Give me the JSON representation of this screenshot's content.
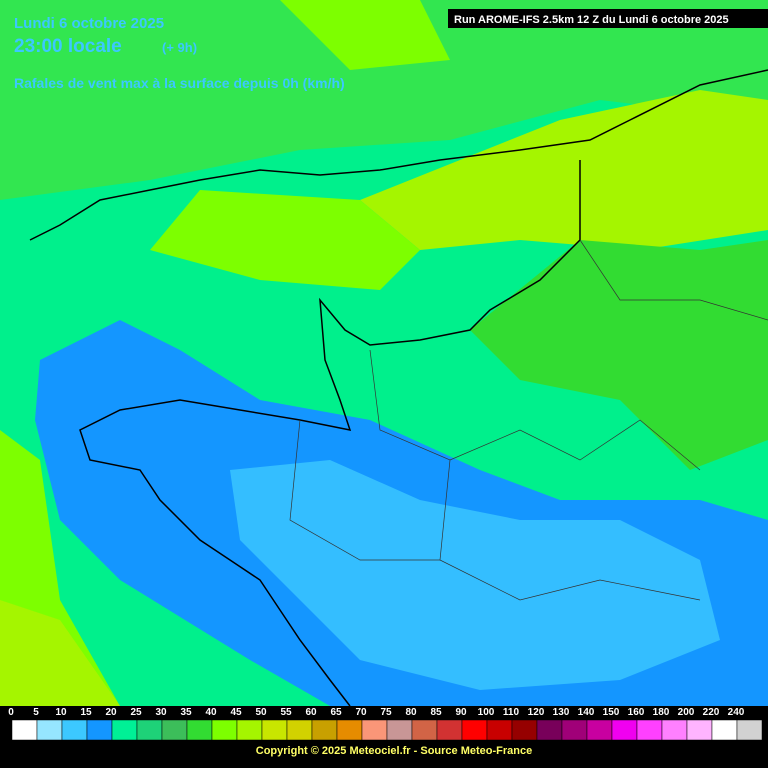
{
  "header": {
    "date": "Lundi 6 octobre 2025",
    "time": "23:00 locale",
    "offset": "(+ 9h)",
    "subtitle": "Rafales de vent max à la surface depuis 0h (km/h)",
    "run": "Run AROME-IFS 2.5km 12 Z du Lundi 6 octobre 2025"
  },
  "legend": {
    "labels": [
      "0",
      "5",
      "10",
      "15",
      "20",
      "25",
      "30",
      "35",
      "40",
      "45",
      "50",
      "55",
      "60",
      "65",
      "70",
      "75",
      "80",
      "85",
      "90",
      "100",
      "110",
      "120",
      "130",
      "140",
      "150",
      "160",
      "180",
      "200",
      "220",
      "240"
    ],
    "colors": [
      "#ffffff",
      "#96e6ff",
      "#3cc8ff",
      "#1496ff",
      "#00f096",
      "#1ed278",
      "#3cbe5a",
      "#32dc32",
      "#7dff00",
      "#a5f500",
      "#c8e600",
      "#d2d200",
      "#c8a000",
      "#e68c00",
      "#fa9678",
      "#c89696",
      "#d26446",
      "#d23232",
      "#ff0000",
      "#c80000",
      "#960000",
      "#78005a",
      "#a00078",
      "#c800a0",
      "#f000f0",
      "#ff40ff",
      "#ff80ff",
      "#ffb4ff",
      "#ffffff",
      "#d2d2d2"
    ]
  },
  "footer": {
    "copyright": "Copyright © 2025 Meteociel.fr - Source Meteo-France"
  }
}
